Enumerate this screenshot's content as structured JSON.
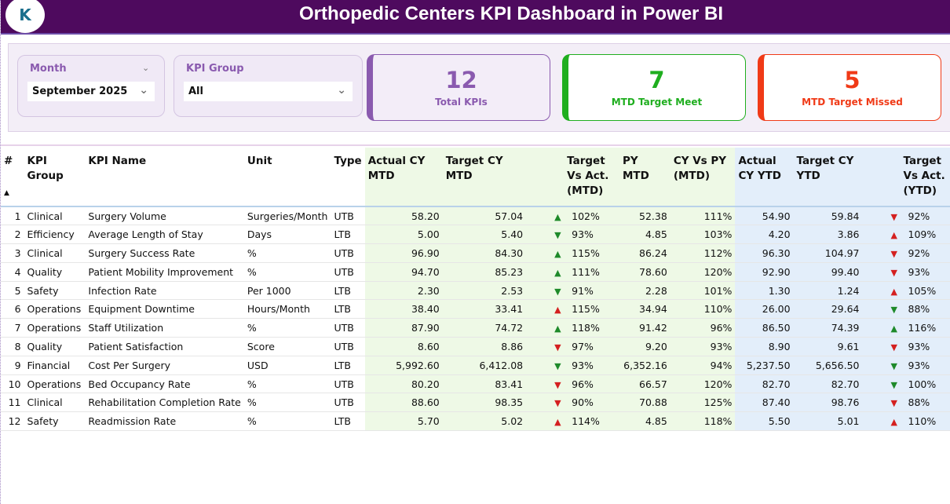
{
  "header": {
    "title": "Orthopedic Centers KPI Dashboard in Power BI",
    "logo_text": "K"
  },
  "filters": {
    "month_label": "Month",
    "month_value": "September 2025",
    "kpi_group_label": "KPI Group",
    "kpi_group_value": "All"
  },
  "cards": {
    "total": {
      "value": "12",
      "label": "Total KPIs"
    },
    "met": {
      "value": "7",
      "label": "MTD Target Meet"
    },
    "missed": {
      "value": "5",
      "label": "MTD Target Missed"
    }
  },
  "colors": {
    "header": "#4e0a5e",
    "total": "#8a5aaf",
    "met": "#1fae1f",
    "missed": "#f03a17",
    "good": "#1e8a2a",
    "bad": "#d42020"
  },
  "table": {
    "columns": [
      "#",
      "KPI Group",
      "KPI Name",
      "Unit",
      "Type",
      "Actual CY MTD",
      "Target CY MTD",
      "Target Vs Act. (MTD)",
      "PY MTD",
      "CY Vs PY (MTD)",
      "Actual CY YTD",
      "Target CY YTD",
      "Target Vs Act. (YTD)"
    ],
    "sort_indicator": "▲",
    "rows": [
      [
        "1",
        "Clinical",
        "Surgery Volume",
        "Surgeries/Month",
        "UTB",
        "58.20",
        "57.04",
        [
          "up",
          "green"
        ],
        "102%",
        "52.38",
        "111%",
        "54.90",
        "59.84",
        [
          "down",
          "red"
        ],
        "92%"
      ],
      [
        "2",
        "Efficiency",
        "Average Length of Stay",
        "Days",
        "LTB",
        "5.00",
        "5.40",
        [
          "down",
          "green"
        ],
        "93%",
        "4.85",
        "103%",
        "4.20",
        "3.86",
        [
          "up",
          "red"
        ],
        "109%"
      ],
      [
        "3",
        "Clinical",
        "Surgery Success Rate",
        "%",
        "UTB",
        "96.90",
        "84.30",
        [
          "up",
          "green"
        ],
        "115%",
        "86.24",
        "112%",
        "96.30",
        "104.97",
        [
          "down",
          "red"
        ],
        "92%"
      ],
      [
        "4",
        "Quality",
        "Patient Mobility Improvement",
        "%",
        "UTB",
        "94.70",
        "85.23",
        [
          "up",
          "green"
        ],
        "111%",
        "78.60",
        "120%",
        "92.90",
        "99.40",
        [
          "down",
          "red"
        ],
        "93%"
      ],
      [
        "5",
        "Safety",
        "Infection Rate",
        "Per 1000",
        "LTB",
        "2.30",
        "2.53",
        [
          "down",
          "green"
        ],
        "91%",
        "2.28",
        "101%",
        "1.30",
        "1.24",
        [
          "up",
          "red"
        ],
        "105%"
      ],
      [
        "6",
        "Operations",
        "Equipment Downtime",
        "Hours/Month",
        "LTB",
        "38.40",
        "33.41",
        [
          "up",
          "red"
        ],
        "115%",
        "34.94",
        "110%",
        "26.00",
        "29.64",
        [
          "down",
          "green"
        ],
        "88%"
      ],
      [
        "7",
        "Operations",
        "Staff Utilization",
        "%",
        "UTB",
        "87.90",
        "74.72",
        [
          "up",
          "green"
        ],
        "118%",
        "91.42",
        "96%",
        "86.50",
        "74.39",
        [
          "up",
          "green"
        ],
        "116%"
      ],
      [
        "8",
        "Quality",
        "Patient Satisfaction",
        "Score",
        "UTB",
        "8.60",
        "8.86",
        [
          "down",
          "red"
        ],
        "97%",
        "9.20",
        "93%",
        "8.90",
        "9.61",
        [
          "down",
          "red"
        ],
        "93%"
      ],
      [
        "9",
        "Financial",
        "Cost Per Surgery",
        "USD",
        "LTB",
        "5,992.60",
        "6,412.08",
        [
          "down",
          "green"
        ],
        "93%",
        "6,352.16",
        "94%",
        "5,237.50",
        "5,656.50",
        [
          "down",
          "green"
        ],
        "93%"
      ],
      [
        "10",
        "Operations",
        "Bed Occupancy Rate",
        "%",
        "UTB",
        "80.20",
        "83.41",
        [
          "down",
          "red"
        ],
        "96%",
        "66.57",
        "120%",
        "82.70",
        "82.70",
        [
          "down",
          "green"
        ],
        "100%"
      ],
      [
        "11",
        "Clinical",
        "Rehabilitation Completion Rate",
        "%",
        "UTB",
        "88.60",
        "98.35",
        [
          "down",
          "red"
        ],
        "90%",
        "70.88",
        "125%",
        "87.40",
        "98.76",
        [
          "down",
          "red"
        ],
        "88%"
      ],
      [
        "12",
        "Safety",
        "Readmission Rate",
        "%",
        "LTB",
        "5.70",
        "5.02",
        [
          "up",
          "red"
        ],
        "114%",
        "4.85",
        "118%",
        "5.50",
        "5.01",
        [
          "up",
          "red"
        ],
        "110%"
      ]
    ]
  }
}
